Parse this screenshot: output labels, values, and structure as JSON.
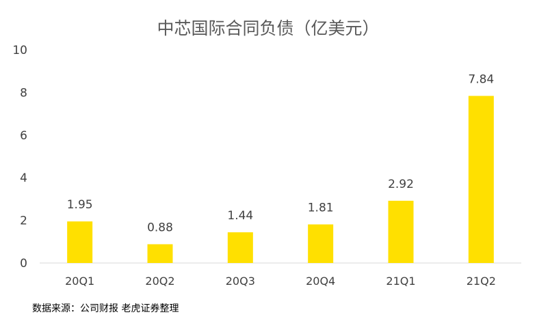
{
  "chart_data": {
    "type": "bar",
    "title": "中芯国际合同负债（亿美元）",
    "categories": [
      "20Q1",
      "20Q2",
      "20Q3",
      "20Q4",
      "21Q1",
      "21Q2"
    ],
    "values": [
      1.95,
      0.88,
      1.44,
      1.81,
      2.92,
      7.84
    ],
    "data_labels": [
      "1.95",
      "0.88",
      "1.44",
      "1.81",
      "2.92",
      "7.84"
    ],
    "ylim": [
      0,
      10
    ],
    "yticks": [
      "0",
      "2",
      "4",
      "6",
      "8",
      "10"
    ],
    "bar_color": "#FFE000",
    "grid": false,
    "legend": "none"
  },
  "source": "数据来源：公司财报 老虎证券整理"
}
